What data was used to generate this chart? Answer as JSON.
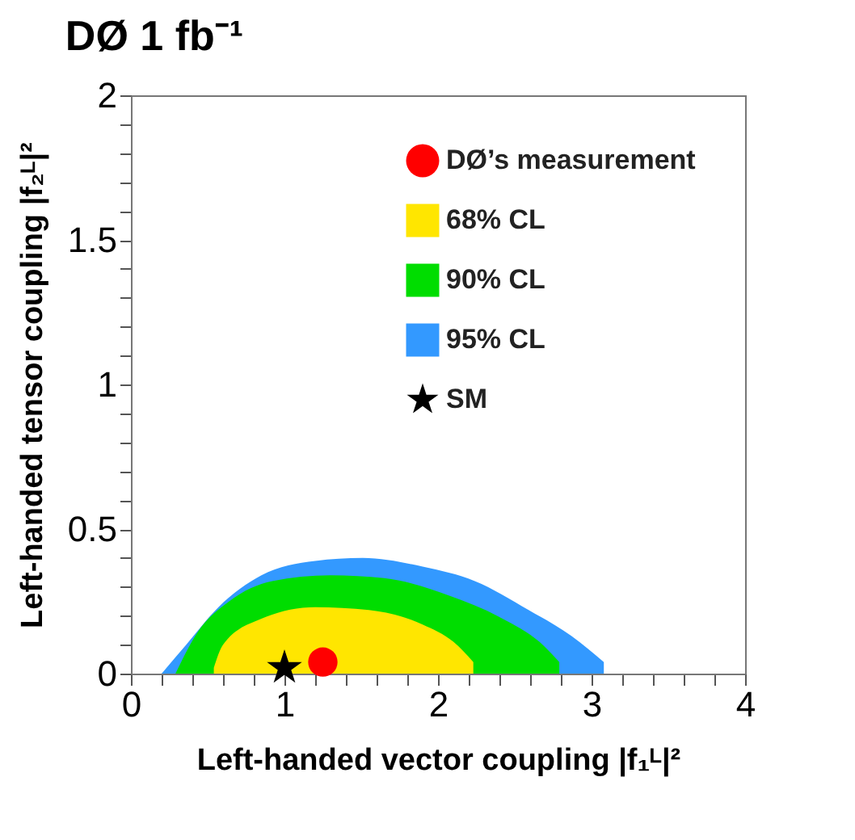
{
  "chart_data": {
    "type": "area",
    "title": "DØ  1 fb⁻¹",
    "xlabel": "Left-handed vector coupling |f₁ᴸ|²",
    "ylabel": "Left-handed tensor coupling |f₂ᴸ|²",
    "xlim": [
      0,
      4
    ],
    "ylim": [
      0,
      2
    ],
    "xticks": [
      0,
      {
        "value": 0.2,
        "label": null
      },
      {
        "value": 0.4,
        "label": null
      },
      {
        "value": 0.6,
        "label": null
      },
      {
        "value": 0.8,
        "label": null
      },
      1,
      {
        "value": 1.2,
        "label": null
      },
      {
        "value": 1.4,
        "label": null
      },
      {
        "value": 1.6,
        "label": null
      },
      {
        "value": 1.8,
        "label": null
      },
      2,
      {
        "value": 2.2,
        "label": null
      },
      {
        "value": 2.4,
        "label": null
      },
      {
        "value": 2.6,
        "label": null
      },
      {
        "value": 2.8,
        "label": null
      },
      3,
      {
        "value": 3.2,
        "label": null
      },
      {
        "value": 3.4,
        "label": null
      },
      {
        "value": 3.6,
        "label": null
      },
      {
        "value": 3.8,
        "label": null
      },
      4
    ],
    "yticks": [
      0,
      {
        "value": 0.1,
        "label": null
      },
      {
        "value": 0.2,
        "label": null
      },
      {
        "value": 0.3,
        "label": null
      },
      {
        "value": 0.4,
        "label": null
      },
      0.5,
      {
        "value": 0.6,
        "label": null
      },
      {
        "value": 0.7,
        "label": null
      },
      {
        "value": 0.8,
        "label": null
      },
      {
        "value": 0.9,
        "label": null
      },
      1,
      {
        "value": 1.1,
        "label": null
      },
      {
        "value": 1.2,
        "label": null
      },
      {
        "value": 1.3,
        "label": null
      },
      {
        "value": 1.4,
        "label": null
      },
      1.5,
      {
        "value": 1.6,
        "label": null
      },
      {
        "value": 1.7,
        "label": null
      },
      {
        "value": 1.8,
        "label": null
      },
      {
        "value": 1.9,
        "label": null
      },
      2
    ],
    "legend": "top right",
    "grid": false,
    "series": [
      {
        "name": "DØ’s measurement",
        "type": "scatter",
        "marker": "circle",
        "color": "#ff0000",
        "x": [
          1.25
        ],
        "values": [
          0.04
        ]
      },
      {
        "name": "68% CL",
        "color": "#ffe600",
        "x": [
          0.54,
          0.6,
          0.85,
          1.2,
          1.55,
          1.9,
          2.1,
          2.23,
          2.23
        ],
        "values": [
          0.02,
          0.1,
          0.19,
          0.23,
          0.22,
          0.17,
          0.11,
          0.04,
          0
        ]
      },
      {
        "name": "90% CL",
        "color": "#00dd00",
        "x": [
          0.29,
          0.43,
          0.64,
          0.92,
          1.3,
          1.65,
          2.07,
          2.42,
          2.66,
          2.79,
          2.79
        ],
        "values": [
          0,
          0.14,
          0.25,
          0.32,
          0.34,
          0.33,
          0.27,
          0.19,
          0.11,
          0.04,
          0
        ]
      },
      {
        "name": "95% CL",
        "color": "#3399ff",
        "x": [
          0.2,
          0.36,
          0.57,
          0.85,
          1.2,
          1.51,
          1.9,
          2.24,
          2.59,
          2.87,
          3.08,
          3.08
        ],
        "values": [
          0,
          0.1,
          0.23,
          0.34,
          0.39,
          0.4,
          0.37,
          0.32,
          0.22,
          0.13,
          0.04,
          0
        ]
      },
      {
        "name": "SM",
        "type": "scatter",
        "marker": "star",
        "color": "#000000",
        "x": [
          1
        ],
        "values": [
          0.02
        ]
      }
    ]
  }
}
